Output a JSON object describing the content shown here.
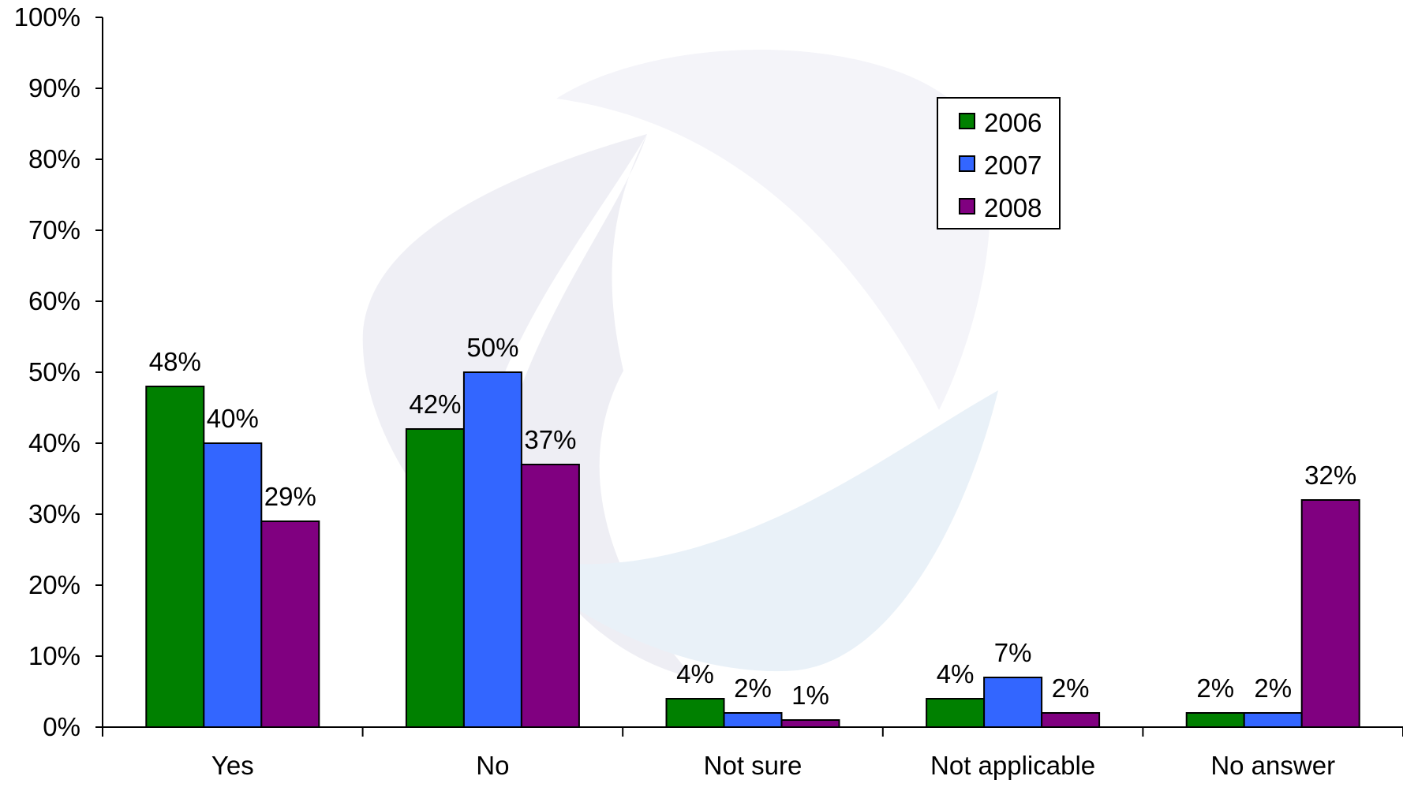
{
  "chart_data": {
    "type": "bar",
    "title": "",
    "xlabel": "",
    "ylabel": "",
    "categories": [
      "Yes",
      "No",
      "Not sure",
      "Not applicable",
      "No answer"
    ],
    "series": [
      {
        "name": "2006",
        "color": "#008000",
        "values": [
          48,
          42,
          4,
          4,
          2
        ],
        "labels": [
          "48%",
          "42%",
          "4%",
          "4%",
          "2%"
        ]
      },
      {
        "name": "2007",
        "color": "#3366ff",
        "values": [
          40,
          50,
          2,
          7,
          2
        ],
        "labels": [
          "40%",
          "50%",
          "2%",
          "7%",
          "2%"
        ]
      },
      {
        "name": "2008",
        "color": "#800080",
        "values": [
          29,
          37,
          1,
          2,
          32
        ],
        "labels": [
          "29%",
          "37%",
          "1%",
          "2%",
          "32%"
        ]
      }
    ],
    "ylim": [
      0,
      100
    ],
    "yticks": [
      "0%",
      "10%",
      "20%",
      "30%",
      "40%",
      "50%",
      "60%",
      "70%",
      "80%",
      "90%",
      "100%"
    ],
    "grid": false,
    "legend_position": "top-right",
    "watermark": "swirl-logo"
  }
}
